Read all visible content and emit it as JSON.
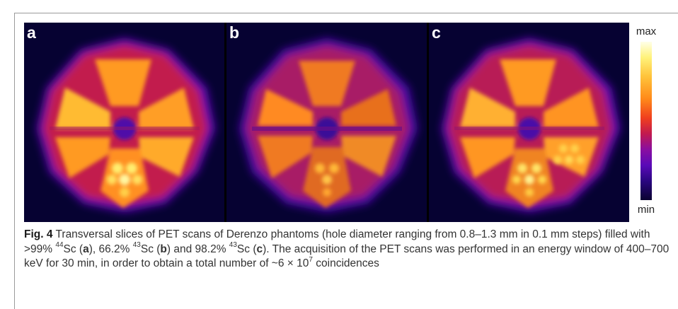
{
  "figure": {
    "panels": [
      {
        "label": "a"
      },
      {
        "label": "b"
      },
      {
        "label": "c"
      }
    ],
    "colorbar": {
      "max_label": "max",
      "min_label": "min"
    }
  },
  "caption": {
    "fig_label": "Fig. 4",
    "text_1": " Transversal slices of PET scans of Derenzo phantoms (hole diameter ranging from 0.8–1.3 mm in 0.1 mm steps) filled with >99% ",
    "sup_1": "44",
    "text_2": "Sc (",
    "bold_a": "a",
    "text_3": "), 66.2% ",
    "sup_2": "43",
    "text_4": "Sc (",
    "bold_b": "b",
    "text_5": ") and 98.2% ",
    "sup_3": "43",
    "text_6": "Sc (",
    "bold_c": "c",
    "text_7": "). The acquisition of the PET scans was performed in an energy window of 400–700 keV for 30 min, in order to obtain a total number of ~6 × 10",
    "sup_4": "7",
    "text_8": " coincidences"
  }
}
